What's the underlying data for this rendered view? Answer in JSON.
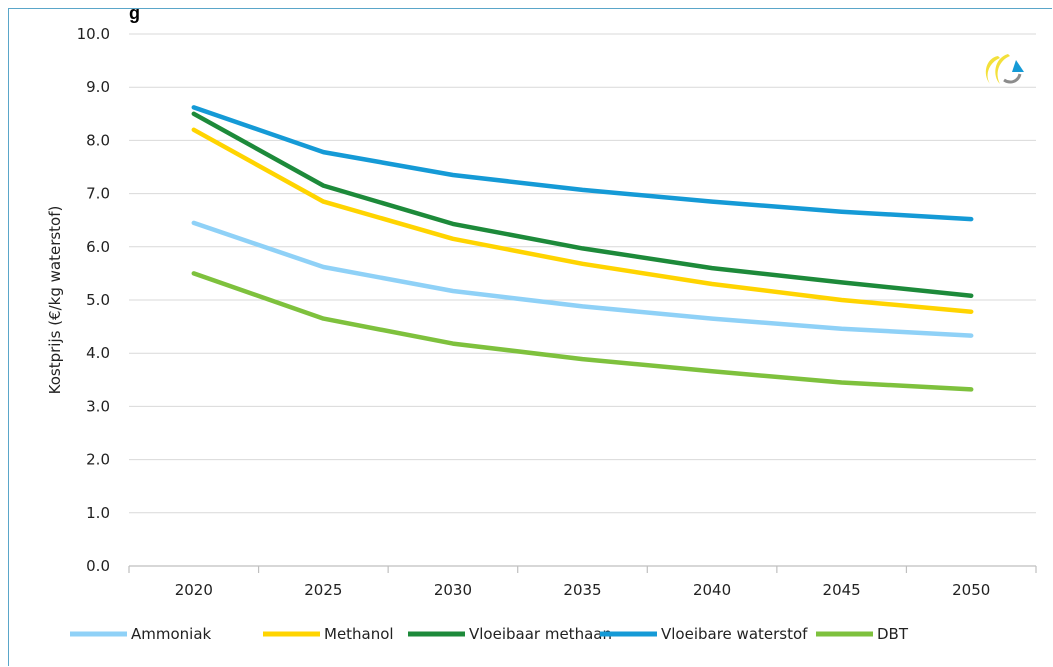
{
  "header_fragment": "g",
  "chart_data": {
    "type": "line",
    "x": [
      "2020",
      "2025",
      "2030",
      "2035",
      "2040",
      "2045",
      "2050"
    ],
    "ylabel": "Kostprijs (€/kg waterstof)",
    "xlabel": "",
    "ylim": [
      0,
      10
    ],
    "yticks": [
      "0.0",
      "1.0",
      "2.0",
      "3.0",
      "4.0",
      "5.0",
      "6.0",
      "7.0",
      "8.0",
      "9.0",
      "10.0"
    ],
    "grid": true,
    "legend_position": "bottom",
    "series": [
      {
        "name": "Ammoniak",
        "color": "#8fd1f7",
        "values": [
          6.45,
          5.62,
          5.17,
          4.88,
          4.65,
          4.46,
          4.33
        ]
      },
      {
        "name": "Methanol",
        "color": "#ffd400",
        "values": [
          8.2,
          6.85,
          6.15,
          5.68,
          5.3,
          5.0,
          4.78
        ]
      },
      {
        "name": "Vloeibaar methaan",
        "color": "#1d8a3a",
        "values": [
          8.5,
          7.15,
          6.43,
          5.97,
          5.6,
          5.33,
          5.08
        ]
      },
      {
        "name": "Vloeibare waterstof",
        "color": "#159ad6",
        "values": [
          8.62,
          7.78,
          7.35,
          7.07,
          6.85,
          6.66,
          6.52
        ]
      },
      {
        "name": "DBT",
        "color": "#7ec13d",
        "values": [
          5.5,
          4.65,
          4.18,
          3.89,
          3.66,
          3.45,
          3.32
        ]
      }
    ]
  },
  "logo": {
    "name": "ce-delft-logo-icon"
  }
}
